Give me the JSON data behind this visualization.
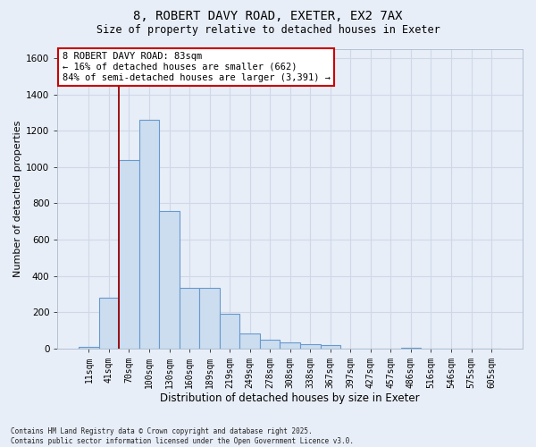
{
  "title_line1": "8, ROBERT DAVY ROAD, EXETER, EX2 7AX",
  "title_line2": "Size of property relative to detached houses in Exeter",
  "xlabel": "Distribution of detached houses by size in Exeter",
  "ylabel": "Number of detached properties",
  "bin_labels": [
    "11sqm",
    "41sqm",
    "70sqm",
    "100sqm",
    "130sqm",
    "160sqm",
    "189sqm",
    "219sqm",
    "249sqm",
    "278sqm",
    "308sqm",
    "338sqm",
    "367sqm",
    "397sqm",
    "427sqm",
    "457sqm",
    "486sqm",
    "516sqm",
    "546sqm",
    "575sqm",
    "605sqm"
  ],
  "bar_heights": [
    10,
    280,
    1040,
    1260,
    760,
    335,
    335,
    190,
    80,
    50,
    35,
    25,
    20,
    0,
    0,
    0,
    5,
    0,
    0,
    0,
    0
  ],
  "bar_color": "#ccddf0",
  "bar_edge_color": "#6699cc",
  "ylim": [
    0,
    1650
  ],
  "yticks": [
    0,
    200,
    400,
    600,
    800,
    1000,
    1200,
    1400,
    1600
  ],
  "vline_x": 1.5,
  "vline_color": "#990000",
  "annotation_text": "8 ROBERT DAVY ROAD: 83sqm\n← 16% of detached houses are smaller (662)\n84% of semi-detached houses are larger (3,391) →",
  "annotation_box_color": "#ffffff",
  "annotation_box_edge_color": "#cc0000",
  "footnote": "Contains HM Land Registry data © Crown copyright and database right 2025.\nContains public sector information licensed under the Open Government Licence v3.0.",
  "background_color": "#e8eef8",
  "grid_color": "#d0d8e8",
  "title_fontsize": 10,
  "subtitle_fontsize": 8.5,
  "ylabel_fontsize": 8,
  "xlabel_fontsize": 8.5,
  "tick_fontsize": 7,
  "annot_fontsize": 7.5,
  "footnote_fontsize": 5.5
}
